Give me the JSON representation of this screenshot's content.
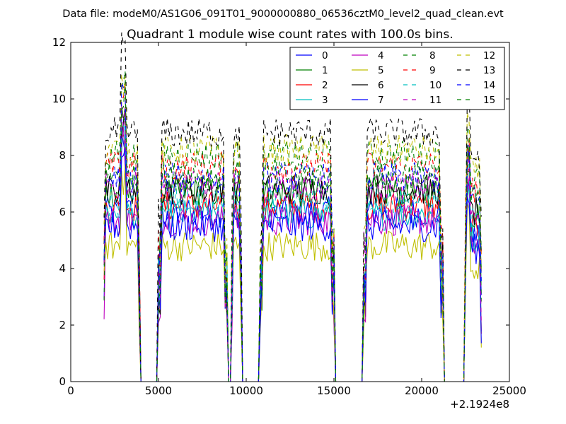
{
  "chart_data": {
    "type": "line",
    "suptitle": "Data file: modeM0/AS1G06_091T01_9000000880_06536cztM0_level2_quad_clean.evt",
    "title": "Quadrant 1 module wise count rates with 100.0s bins.",
    "xlabel": "",
    "ylabel": "",
    "x_offset_label": "+2.1924e8",
    "xlim": [
      0,
      25000
    ],
    "ylim": [
      0,
      12
    ],
    "xticks": [
      0,
      5000,
      10000,
      15000,
      20000,
      25000
    ],
    "yticks": [
      0,
      2,
      4,
      6,
      8,
      10,
      12
    ],
    "grid": false,
    "legend_position": "top-right",
    "segments": [
      {
        "x_start": 1900,
        "x_end": 3900,
        "gap_after": [
          3900,
          5000
        ]
      },
      {
        "x_start": 5000,
        "x_end": 8900,
        "gap_after": [
          8900,
          9200
        ]
      },
      {
        "x_start": 9200,
        "x_end": 9700,
        "gap_after": [
          9700,
          10800
        ]
      },
      {
        "x_start": 10800,
        "x_end": 15000,
        "gap_after": [
          15000,
          16700
        ]
      },
      {
        "x_start": 16700,
        "x_end": 21200,
        "gap_after": [
          21200,
          22500
        ]
      },
      {
        "x_start": 22500,
        "x_end": 23400,
        "gap_after": null
      }
    ],
    "series": [
      {
        "name": "0",
        "color": "#0000ff",
        "style": "solid",
        "level": 6.0
      },
      {
        "name": "1",
        "color": "#008000",
        "style": "solid",
        "level": 6.7
      },
      {
        "name": "2",
        "color": "#ff0000",
        "style": "solid",
        "level": 6.2
      },
      {
        "name": "3",
        "color": "#00bfbf",
        "style": "solid",
        "level": 5.9
      },
      {
        "name": "4",
        "color": "#bf00bf",
        "style": "solid",
        "level": 5.7
      },
      {
        "name": "5",
        "color": "#bfbf00",
        "style": "solid",
        "level": 4.8
      },
      {
        "name": "6",
        "color": "#000000",
        "style": "solid",
        "level": 6.8
      },
      {
        "name": "7",
        "color": "#0000ff",
        "style": "solid",
        "level": 5.5
      },
      {
        "name": "8",
        "color": "#008000",
        "style": "dashed",
        "level": 8.0
      },
      {
        "name": "9",
        "color": "#ff0000",
        "style": "dashed",
        "level": 7.6
      },
      {
        "name": "10",
        "color": "#00bfbf",
        "style": "dashed",
        "level": 6.4
      },
      {
        "name": "11",
        "color": "#bf00bf",
        "style": "dashed",
        "level": 6.9
      },
      {
        "name": "12",
        "color": "#bfbf00",
        "style": "dashed",
        "level": 8.2
      },
      {
        "name": "13",
        "color": "#000000",
        "style": "dashed",
        "level": 8.8
      },
      {
        "name": "14",
        "color": "#0000ff",
        "style": "dashed",
        "level": 7.2
      },
      {
        "name": "15",
        "color": "#008000",
        "style": "dashed",
        "level": 7.3
      }
    ]
  }
}
